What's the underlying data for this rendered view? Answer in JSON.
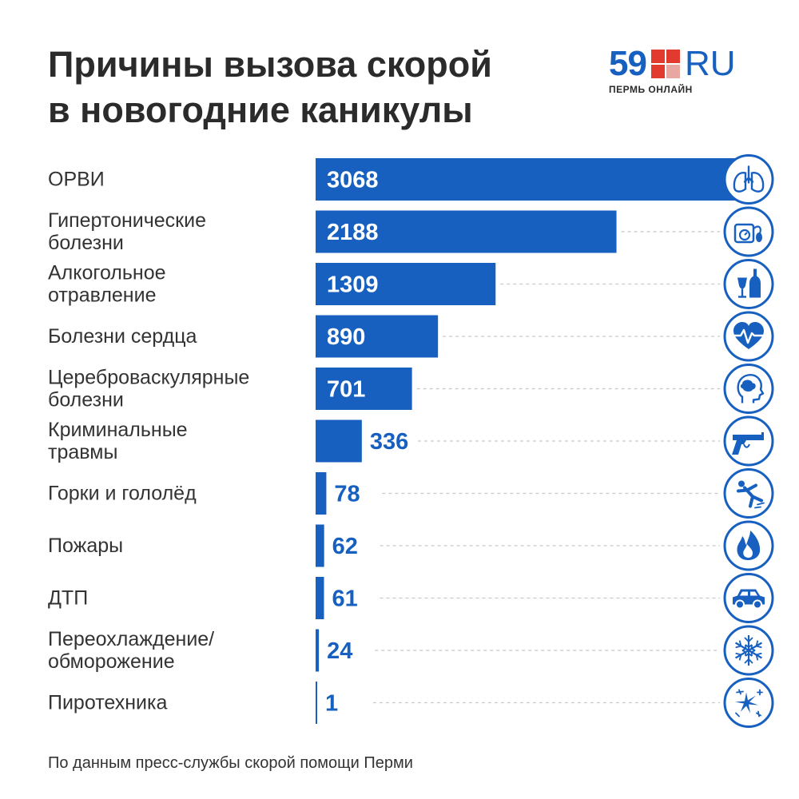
{
  "header": {
    "title_line1": "Причины вызова скорой",
    "title_line2": "в новогодние каникулы"
  },
  "logo": {
    "number": "59",
    "suffix": "RU",
    "tagline": "ПЕРМЬ ОНЛАЙН"
  },
  "colors": {
    "bar": "#1760c0",
    "bar_label_inside": "#ffffff",
    "bar_label_outside": "#1760c0",
    "category_text": "#333333",
    "icon": "#1760c0",
    "gridline": "#c8c8c8"
  },
  "chart_data": {
    "type": "bar",
    "orientation": "horizontal",
    "categories": [
      [
        "ОРВИ"
      ],
      [
        "Гипертонические",
        "болезни"
      ],
      [
        "Алкогольное",
        "отравление"
      ],
      [
        "Болезни сердца"
      ],
      [
        "Цереброваскулярные",
        "болезни"
      ],
      [
        "Криминальные",
        "травмы"
      ],
      [
        "Горки и гололёд"
      ],
      [
        "Пожары"
      ],
      [
        "ДТП"
      ],
      [
        "Переохлаждение/",
        "обморожение"
      ],
      [
        "Пиротехника"
      ]
    ],
    "values": [
      3068,
      2188,
      1309,
      890,
      701,
      336,
      78,
      62,
      61,
      24,
      1
    ],
    "icons": [
      "lungs-icon",
      "tonometer-icon",
      "bottle-glass-icon",
      "heart-pulse-icon",
      "head-brain-icon",
      "pistol-icon",
      "slipping-person-icon",
      "fire-icon",
      "car-icon",
      "snowflake-icon",
      "fireworks-icon"
    ],
    "xlim": [
      0,
      3068
    ],
    "grid": false
  },
  "footer": {
    "source": "По данным пресс-службы скорой помощи Перми"
  }
}
